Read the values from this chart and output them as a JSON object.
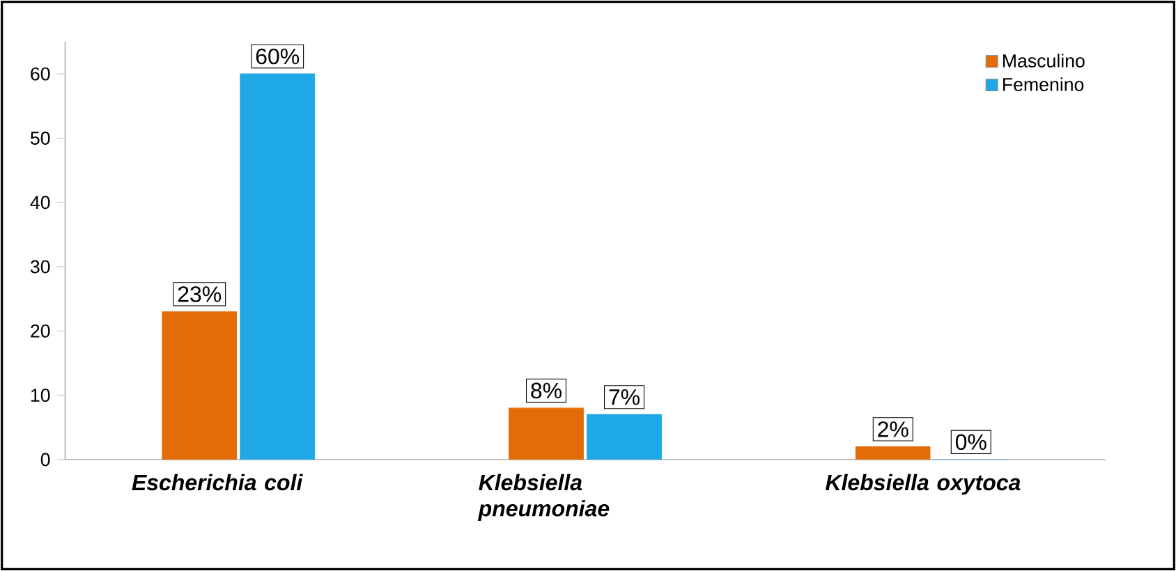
{
  "chart_data": {
    "type": "bar",
    "categories": [
      "Escherichia coli",
      "Klebsiella pneumoniae",
      "Klebsiella oxytoca"
    ],
    "series": [
      {
        "name": "Masculino",
        "color": "#e36c09",
        "values": [
          23,
          8,
          2
        ],
        "value_labels": [
          "23%",
          "8%",
          "2%"
        ]
      },
      {
        "name": "Femenino",
        "color": "#1fa8e6",
        "values": [
          60,
          7,
          0
        ],
        "value_labels": [
          "60%",
          "7%",
          "0%"
        ]
      }
    ],
    "ylim": [
      0,
      65
    ],
    "yticks": [
      0,
      10,
      20,
      30,
      40,
      50,
      60
    ],
    "legend": "top right"
  }
}
